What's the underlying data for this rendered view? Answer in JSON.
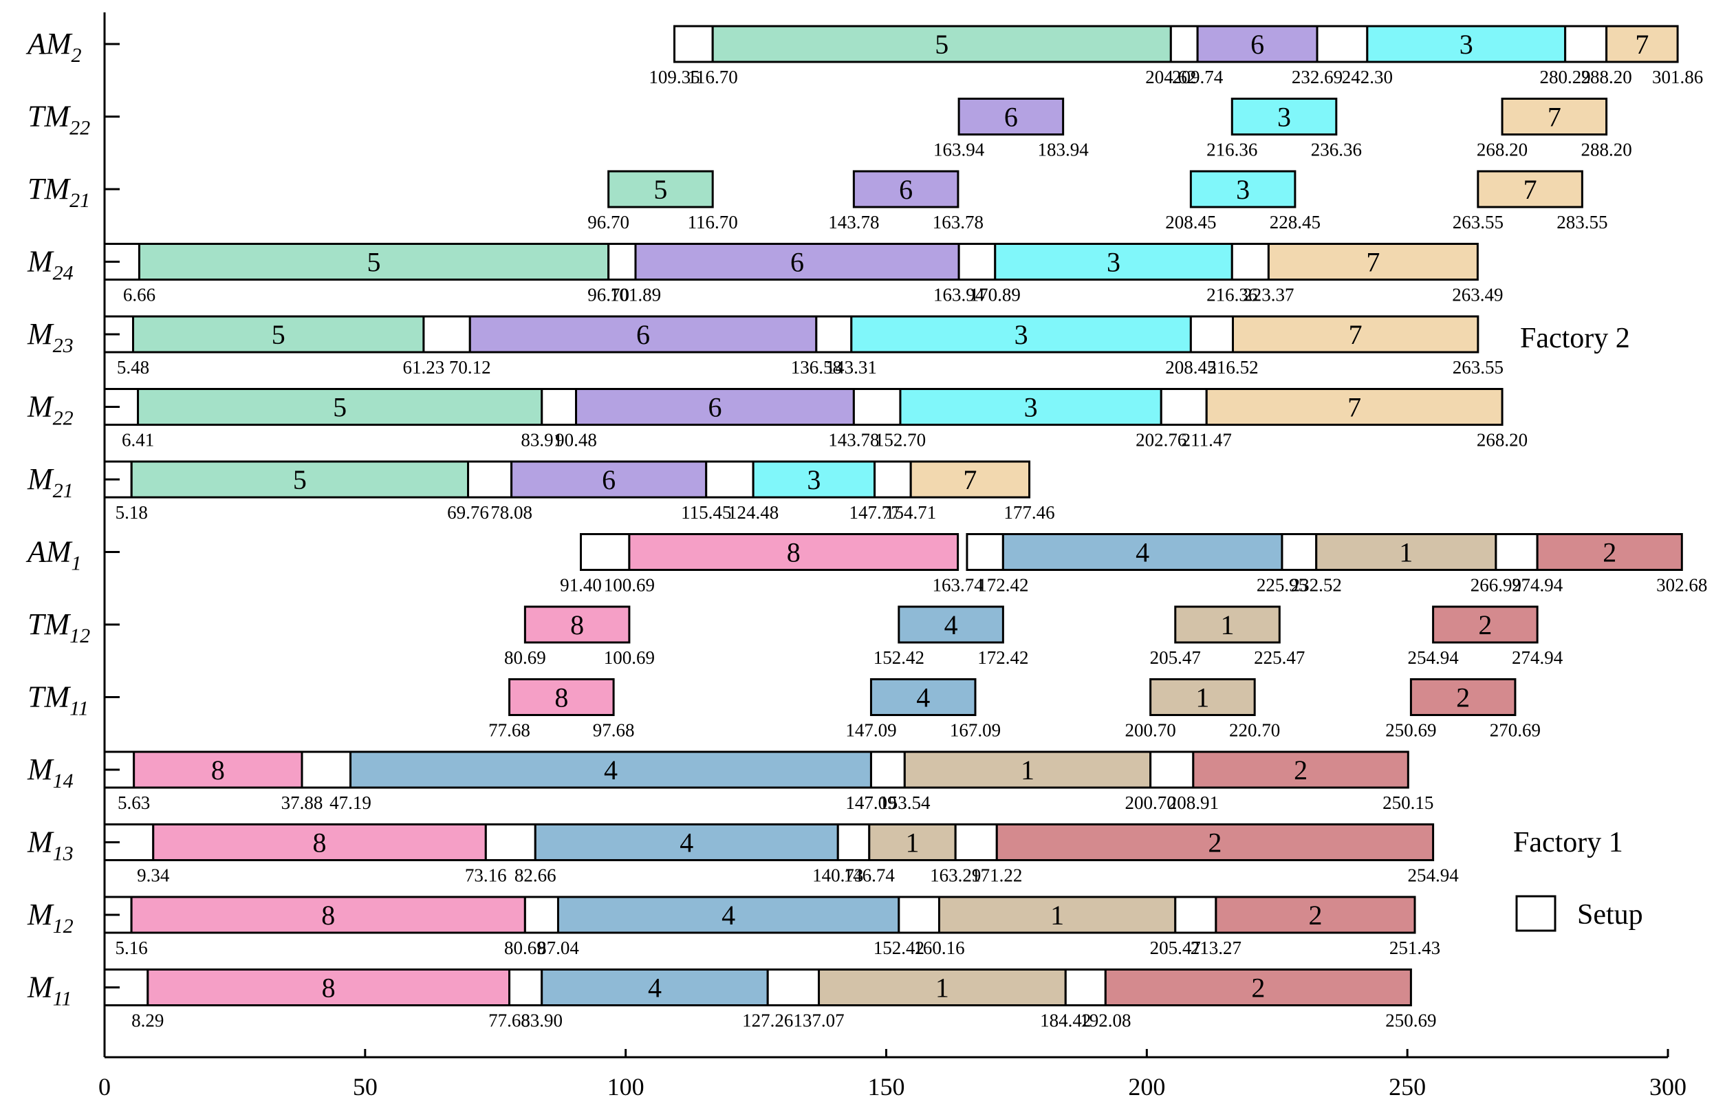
{
  "chart_data": {
    "type": "gantt",
    "xlim": [
      0,
      300
    ],
    "xticks": [
      0,
      50,
      100,
      150,
      200,
      250,
      300
    ],
    "colors": {
      "1": "#d3c2a8",
      "2": "#d48a8e",
      "3": "#80f7fa",
      "4": "#8fbad6",
      "5": "#a4e1c8",
      "6": "#b4a2e2",
      "7": "#f2d8af",
      "8": "#f59fc6",
      "setup": "#ffffff"
    },
    "rows": [
      {
        "base": "AM",
        "sub": "2",
        "segments": [
          {
            "s": 109.35,
            "e": 116.7,
            "j": null
          },
          {
            "s": 116.7,
            "e": 204.62,
            "j": "5"
          },
          {
            "s": 204.62,
            "e": 209.74,
            "j": null
          },
          {
            "s": 209.74,
            "e": 232.69,
            "j": "6"
          },
          {
            "s": 232.69,
            "e": 242.3,
            "j": null
          },
          {
            "s": 242.3,
            "e": 280.29,
            "j": "3"
          },
          {
            "s": 280.29,
            "e": 288.2,
            "j": null
          },
          {
            "s": 288.2,
            "e": 301.86,
            "j": "7"
          }
        ],
        "labels": [
          "109.35",
          "116.70",
          "204.62",
          "209.74",
          "232.69",
          "242.30",
          "280.29",
          "288.20",
          "301.86"
        ]
      },
      {
        "base": "TM",
        "sub": "22",
        "segments": [
          {
            "s": 163.94,
            "e": 183.94,
            "j": "6"
          },
          {
            "s": 216.36,
            "e": 236.36,
            "j": "3"
          },
          {
            "s": 268.2,
            "e": 288.2,
            "j": "7"
          }
        ],
        "labels": [
          "163.94",
          "183.94",
          "216.36",
          "236.36",
          "268.20",
          "288.20"
        ]
      },
      {
        "base": "TM",
        "sub": "21",
        "segments": [
          {
            "s": 96.7,
            "e": 116.7,
            "j": "5"
          },
          {
            "s": 143.78,
            "e": 163.78,
            "j": "6"
          },
          {
            "s": 208.45,
            "e": 228.45,
            "j": "3"
          },
          {
            "s": 263.55,
            "e": 283.55,
            "j": "7"
          }
        ],
        "labels": [
          "96.70",
          "116.70",
          "143.78",
          "163.78",
          "208.45",
          "228.45",
          "263.55",
          "283.55"
        ]
      },
      {
        "base": "M",
        "sub": "24",
        "segments": [
          {
            "s": 0,
            "e": 6.66,
            "j": null
          },
          {
            "s": 6.66,
            "e": 96.7,
            "j": "5"
          },
          {
            "s": 96.7,
            "e": 101.89,
            "j": null
          },
          {
            "s": 101.89,
            "e": 163.94,
            "j": "6"
          },
          {
            "s": 163.94,
            "e": 170.89,
            "j": null
          },
          {
            "s": 170.89,
            "e": 216.36,
            "j": "3"
          },
          {
            "s": 216.36,
            "e": 223.37,
            "j": null
          },
          {
            "s": 223.37,
            "e": 263.49,
            "j": "7"
          }
        ],
        "labels": [
          "6.66",
          "96.70",
          "101.89",
          "163.94",
          "170.89",
          "216.36",
          "223.37",
          "263.49"
        ]
      },
      {
        "base": "M",
        "sub": "23",
        "segments": [
          {
            "s": 0,
            "e": 5.48,
            "j": null
          },
          {
            "s": 5.48,
            "e": 61.23,
            "j": "5"
          },
          {
            "s": 61.23,
            "e": 70.12,
            "j": null
          },
          {
            "s": 70.12,
            "e": 136.58,
            "j": "6"
          },
          {
            "s": 136.58,
            "e": 143.31,
            "j": null
          },
          {
            "s": 143.31,
            "e": 208.45,
            "j": "3"
          },
          {
            "s": 208.45,
            "e": 216.52,
            "j": null
          },
          {
            "s": 216.52,
            "e": 263.55,
            "j": "7"
          }
        ],
        "labels": [
          "5.48",
          "61.23",
          "70.12",
          "136.58",
          "143.31",
          "208.45",
          "216.52",
          "263.55"
        ]
      },
      {
        "base": "M",
        "sub": "22",
        "segments": [
          {
            "s": 0,
            "e": 6.41,
            "j": null
          },
          {
            "s": 6.41,
            "e": 83.91,
            "j": "5"
          },
          {
            "s": 83.91,
            "e": 90.48,
            "j": null
          },
          {
            "s": 90.48,
            "e": 143.78,
            "j": "6"
          },
          {
            "s": 143.78,
            "e": 152.7,
            "j": null
          },
          {
            "s": 152.7,
            "e": 202.76,
            "j": "3"
          },
          {
            "s": 202.76,
            "e": 211.47,
            "j": null
          },
          {
            "s": 211.47,
            "e": 268.2,
            "j": "7"
          }
        ],
        "labels": [
          "6.41",
          "83.91",
          "90.48",
          "143.78",
          "152.70",
          "202.76",
          "211.47",
          "268.20"
        ]
      },
      {
        "base": "M",
        "sub": "21",
        "segments": [
          {
            "s": 0,
            "e": 5.18,
            "j": null
          },
          {
            "s": 5.18,
            "e": 69.76,
            "j": "5"
          },
          {
            "s": 69.76,
            "e": 78.08,
            "j": null
          },
          {
            "s": 78.08,
            "e": 115.45,
            "j": "6"
          },
          {
            "s": 115.45,
            "e": 124.48,
            "j": null
          },
          {
            "s": 124.48,
            "e": 147.77,
            "j": "3"
          },
          {
            "s": 147.77,
            "e": 154.71,
            "j": null
          },
          {
            "s": 154.71,
            "e": 177.46,
            "j": "7"
          }
        ],
        "labels": [
          "5.18",
          "69.76",
          "78.08",
          "115.45",
          "124.48",
          "147.77",
          "154.71",
          "177.46"
        ]
      },
      {
        "base": "AM",
        "sub": "1",
        "segments": [
          {
            "s": 91.4,
            "e": 100.69,
            "j": null
          },
          {
            "s": 100.69,
            "e": 163.74,
            "j": "8"
          },
          {
            "s": 165.5,
            "e": 172.42,
            "j": null
          },
          {
            "s": 172.42,
            "e": 225.95,
            "j": "4"
          },
          {
            "s": 225.95,
            "e": 232.52,
            "j": null
          },
          {
            "s": 232.52,
            "e": 266.99,
            "j": "1"
          },
          {
            "s": 266.99,
            "e": 274.94,
            "j": null
          },
          {
            "s": 274.94,
            "e": 302.68,
            "j": "2"
          }
        ],
        "labels": [
          "91.40",
          "100.69",
          "163.74",
          "172.42",
          "225.95",
          "232.52",
          "266.99",
          "274.94",
          "302.68"
        ]
      },
      {
        "base": "TM",
        "sub": "12",
        "segments": [
          {
            "s": 80.69,
            "e": 100.69,
            "j": "8"
          },
          {
            "s": 152.42,
            "e": 172.42,
            "j": "4"
          },
          {
            "s": 205.47,
            "e": 225.47,
            "j": "1"
          },
          {
            "s": 254.94,
            "e": 274.94,
            "j": "2"
          }
        ],
        "labels": [
          "80.69",
          "100.69",
          "152.42",
          "172.42",
          "205.47",
          "225.47",
          "254.94",
          "274.94"
        ]
      },
      {
        "base": "TM",
        "sub": "11",
        "segments": [
          {
            "s": 77.68,
            "e": 97.68,
            "j": "8"
          },
          {
            "s": 147.09,
            "e": 167.09,
            "j": "4"
          },
          {
            "s": 200.7,
            "e": 220.7,
            "j": "1"
          },
          {
            "s": 250.69,
            "e": 270.69,
            "j": "2"
          }
        ],
        "labels": [
          "77.68",
          "97.68",
          "147.09",
          "167.09",
          "200.70",
          "220.70",
          "250.69",
          "270.69"
        ]
      },
      {
        "base": "M",
        "sub": "14",
        "segments": [
          {
            "s": 0,
            "e": 5.63,
            "j": null
          },
          {
            "s": 5.63,
            "e": 37.88,
            "j": "8"
          },
          {
            "s": 37.88,
            "e": 47.19,
            "j": null
          },
          {
            "s": 47.19,
            "e": 147.09,
            "j": "4"
          },
          {
            "s": 147.09,
            "e": 153.54,
            "j": null
          },
          {
            "s": 153.54,
            "e": 200.7,
            "j": "1"
          },
          {
            "s": 200.7,
            "e": 208.91,
            "j": null
          },
          {
            "s": 208.91,
            "e": 250.15,
            "j": "2"
          }
        ],
        "labels": [
          "5.63",
          "37.88",
          "47.19",
          "147.09",
          "153.54",
          "200.70",
          "208.91",
          "250.15"
        ]
      },
      {
        "base": "M",
        "sub": "13",
        "segments": [
          {
            "s": 0,
            "e": 9.34,
            "j": null
          },
          {
            "s": 9.34,
            "e": 73.16,
            "j": "8"
          },
          {
            "s": 73.16,
            "e": 82.66,
            "j": null
          },
          {
            "s": 82.66,
            "e": 140.73,
            "j": "4"
          },
          {
            "s": 140.73,
            "e": 146.74,
            "j": null
          },
          {
            "s": 146.74,
            "e": 163.29,
            "j": "1"
          },
          {
            "s": 163.29,
            "e": 171.22,
            "j": null
          },
          {
            "s": 171.22,
            "e": 254.94,
            "j": "2"
          }
        ],
        "labels": [
          "9.34",
          "73.16",
          "82.66",
          "140.73",
          "146.74",
          "163.29",
          "171.22",
          "254.94"
        ]
      },
      {
        "base": "M",
        "sub": "12",
        "segments": [
          {
            "s": 0,
            "e": 5.16,
            "j": null
          },
          {
            "s": 5.16,
            "e": 80.69,
            "j": "8"
          },
          {
            "s": 80.69,
            "e": 87.04,
            "j": null
          },
          {
            "s": 87.04,
            "e": 152.42,
            "j": "4"
          },
          {
            "s": 152.42,
            "e": 160.16,
            "j": null
          },
          {
            "s": 160.16,
            "e": 205.47,
            "j": "1"
          },
          {
            "s": 205.47,
            "e": 213.27,
            "j": null
          },
          {
            "s": 213.27,
            "e": 251.43,
            "j": "2"
          }
        ],
        "labels": [
          "5.16",
          "80.69",
          "87.04",
          "152.42",
          "160.16",
          "205.47",
          "213.27",
          "251.43"
        ]
      },
      {
        "base": "M",
        "sub": "11",
        "segments": [
          {
            "s": 0,
            "e": 8.29,
            "j": null
          },
          {
            "s": 8.29,
            "e": 77.68,
            "j": "8"
          },
          {
            "s": 77.68,
            "e": 83.9,
            "j": null
          },
          {
            "s": 83.9,
            "e": 127.26,
            "j": "4"
          },
          {
            "s": 127.26,
            "e": 137.07,
            "j": null
          },
          {
            "s": 137.07,
            "e": 184.42,
            "j": "1"
          },
          {
            "s": 184.42,
            "e": 192.08,
            "j": null
          },
          {
            "s": 192.08,
            "e": 250.69,
            "j": "2"
          }
        ],
        "labels": [
          "8.29",
          "77.68",
          "83.90",
          "127.26",
          "137.07",
          "184.42",
          "192.08",
          "250.69"
        ]
      }
    ],
    "annotations": {
      "factory2": "Factory 2",
      "factory1": "Factory 1",
      "setup": "Setup"
    }
  }
}
